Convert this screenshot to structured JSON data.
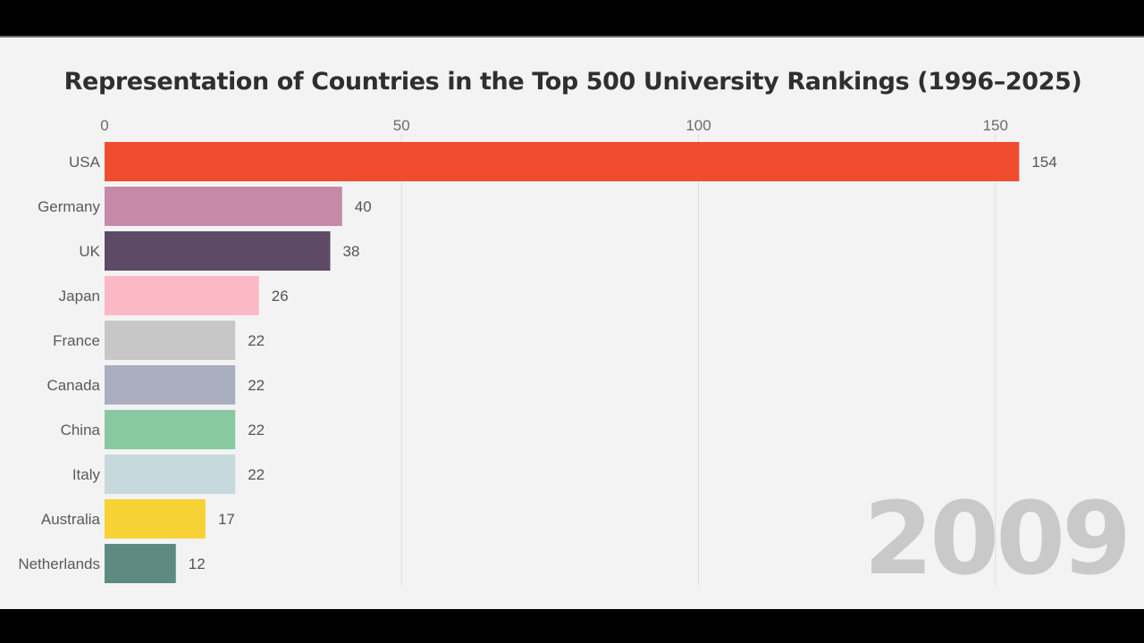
{
  "chart_data": {
    "type": "bar",
    "orientation": "horizontal",
    "title": "Representation of Countries in the Top 500 University Rankings (1996–2025)",
    "year": "2009",
    "xlim": [
      0,
      154
    ],
    "xticks": [
      0,
      50,
      100,
      150
    ],
    "grid": true,
    "categories": [
      "USA",
      "Germany",
      "UK",
      "Japan",
      "France",
      "Canada",
      "China",
      "Italy",
      "Australia",
      "Netherlands"
    ],
    "values": [
      154,
      40,
      38,
      26,
      22,
      22,
      22,
      22,
      17,
      12
    ],
    "colors": [
      "#f04d2e",
      "#c48aa8",
      "#5c4a67",
      "#fbb8c5",
      "#c7c7c7",
      "#a9afc1",
      "#88c9a2",
      "#c6d9dc",
      "#f7d235",
      "#5e8a82"
    ]
  }
}
